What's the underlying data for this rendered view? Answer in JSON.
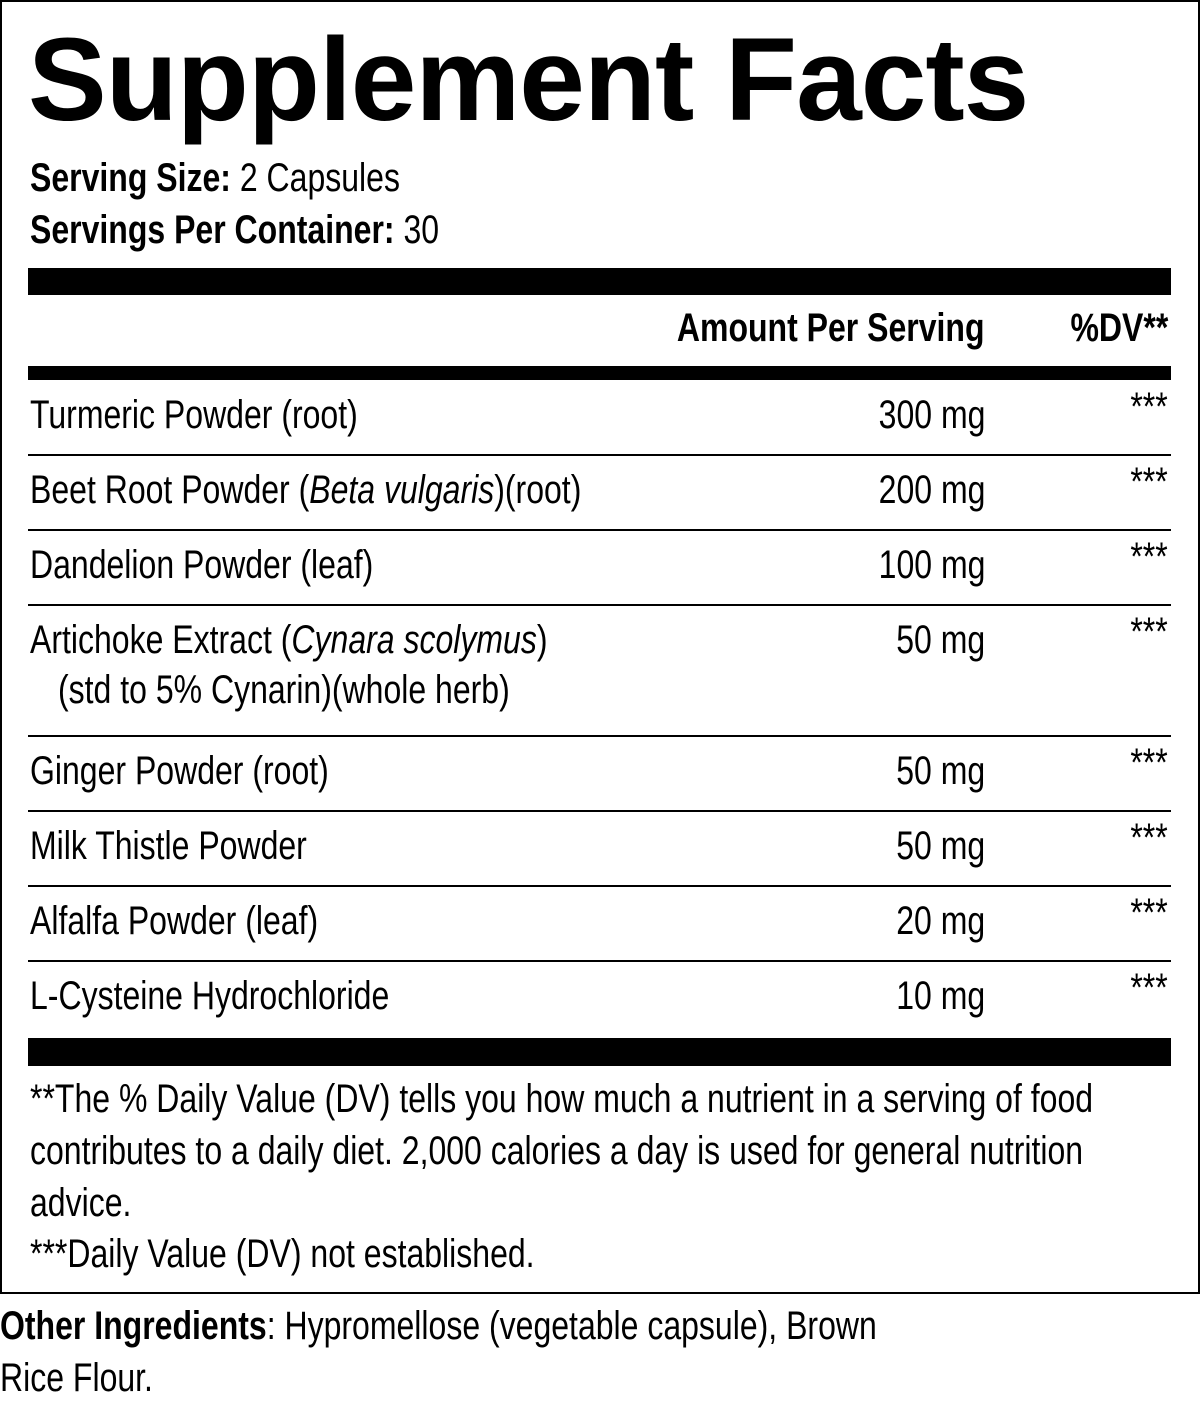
{
  "title": "Supplement Facts",
  "serving_size": {
    "label": "Serving Size:",
    "value": "2 Capsules"
  },
  "servings_per_container": {
    "label": "Servings Per Container:",
    "value": "30"
  },
  "columns": {
    "amount": "Amount Per Serving",
    "dv": "%DV**"
  },
  "rows": [
    {
      "name": "Turmeric Powder (root)",
      "amount": "300 mg",
      "dv": "***"
    },
    {
      "name_before": "Beet Root Powder (",
      "name_italic": "Beta vulgaris",
      "name_after": ")(root)",
      "amount": "200 mg",
      "dv": "***"
    },
    {
      "name": "Dandelion Powder (leaf)",
      "amount": "100 mg",
      "dv": "***"
    },
    {
      "name_before": "Artichoke Extract (",
      "name_italic": "Cynara scolymus",
      "name_after": ")",
      "detail": "(std to 5% Cynarin)(whole herb)",
      "amount": "50 mg",
      "dv": "***"
    },
    {
      "name": "Ginger Powder (root)",
      "amount": "50 mg",
      "dv": "***"
    },
    {
      "name": "Milk Thistle Powder",
      "amount": "50 mg",
      "dv": "***"
    },
    {
      "name": "Alfalfa Powder (leaf)",
      "amount": "20 mg",
      "dv": "***"
    },
    {
      "name": "L-Cysteine Hydrochloride",
      "amount": "10 mg",
      "dv": "***"
    }
  ],
  "footnotes": [
    "**The % Daily Value (DV) tells you how much a nutrient in a serving of food contributes to a daily diet. 2,000 calories a day is used for general nutrition advice.",
    "***Daily Value (DV) not established."
  ],
  "other_ingredients": {
    "label": "Other Ingredients",
    "text": ": Hypromellose (vegetable capsule), Brown Rice Flour."
  }
}
